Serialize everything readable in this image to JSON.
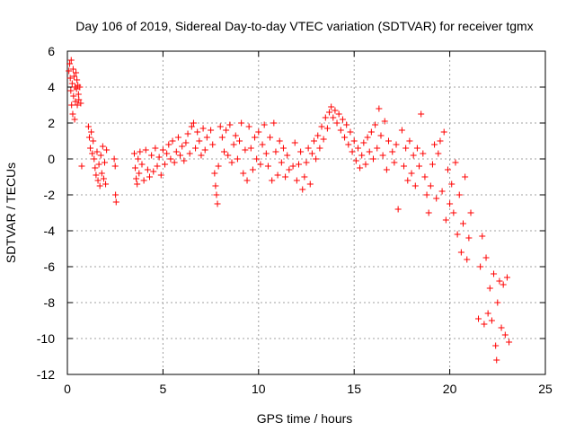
{
  "chart_data": {
    "type": "scatter",
    "title": "Day 106 of 2019, Sidereal Day-to-day VTEC variation (SDTVAR) for receiver tgmx",
    "xlabel": "GPS time / hours",
    "ylabel": "SDTVAR / TECUs",
    "xlim": [
      0,
      25
    ],
    "ylim": [
      -12,
      6
    ],
    "x_ticks": [
      0,
      5,
      10,
      15,
      20,
      25
    ],
    "y_ticks": [
      -12,
      -10,
      -8,
      -6,
      -4,
      -2,
      0,
      2,
      4,
      6
    ],
    "x_tick_labels": [
      "0",
      "5",
      "10",
      "15",
      "20",
      "25"
    ],
    "y_tick_labels": [
      "-12",
      "-10",
      "-8",
      "-6",
      "-4",
      "-2",
      "0",
      "2",
      "4",
      "6"
    ],
    "grid": true,
    "marker": "+",
    "series": [
      {
        "name": "SDTVAR",
        "color": "#ff0000",
        "points": [
          [
            0.08,
            4.9
          ],
          [
            0.12,
            5.3
          ],
          [
            0.15,
            4.5
          ],
          [
            0.18,
            3.8
          ],
          [
            0.2,
            5.5
          ],
          [
            0.22,
            3.0
          ],
          [
            0.25,
            4.2
          ],
          [
            0.28,
            2.5
          ],
          [
            0.3,
            5.0
          ],
          [
            0.32,
            3.5
          ],
          [
            0.35,
            4.6
          ],
          [
            0.38,
            2.2
          ],
          [
            0.4,
            4.0
          ],
          [
            0.42,
            3.2
          ],
          [
            0.45,
            4.8
          ],
          [
            0.48,
            3.9
          ],
          [
            0.5,
            4.4
          ],
          [
            0.52,
            3.0
          ],
          [
            0.55,
            4.1
          ],
          [
            0.58,
            3.6
          ],
          [
            0.6,
            3.3
          ],
          [
            0.65,
            4.0
          ],
          [
            0.7,
            3.1
          ],
          [
            0.75,
            -0.4
          ],
          [
            1.1,
            1.8
          ],
          [
            1.15,
            1.2
          ],
          [
            1.2,
            0.6
          ],
          [
            1.25,
            1.5
          ],
          [
            1.3,
            0.3
          ],
          [
            1.35,
            1.0
          ],
          [
            1.4,
            0.0
          ],
          [
            1.45,
            -0.5
          ],
          [
            1.5,
            -0.9
          ],
          [
            1.55,
            0.4
          ],
          [
            1.6,
            -1.2
          ],
          [
            1.65,
            -0.3
          ],
          [
            1.7,
            -1.5
          ],
          [
            1.75,
            0.2
          ],
          [
            1.8,
            -0.8
          ],
          [
            1.85,
            0.7
          ],
          [
            1.9,
            -1.1
          ],
          [
            1.95,
            -0.2
          ],
          [
            2.0,
            -1.4
          ],
          [
            2.05,
            0.5
          ],
          [
            2.45,
            0.0
          ],
          [
            2.5,
            -0.4
          ],
          [
            2.52,
            -2.0
          ],
          [
            2.55,
            -2.4
          ],
          [
            3.5,
            0.3
          ],
          [
            3.55,
            -0.5
          ],
          [
            3.6,
            -1.1
          ],
          [
            3.65,
            -1.4
          ],
          [
            3.7,
            0.0
          ],
          [
            3.75,
            -0.8
          ],
          [
            3.8,
            0.4
          ],
          [
            3.9,
            -0.3
          ],
          [
            4.0,
            -1.2
          ],
          [
            4.1,
            0.5
          ],
          [
            4.2,
            -0.6
          ],
          [
            4.3,
            -1.0
          ],
          [
            4.4,
            0.2
          ],
          [
            4.5,
            -0.7
          ],
          [
            4.6,
            0.6
          ],
          [
            4.7,
            -0.4
          ],
          [
            4.8,
            0.1
          ],
          [
            4.9,
            -0.9
          ],
          [
            5.0,
            0.5
          ],
          [
            5.1,
            -0.3
          ],
          [
            5.2,
            0.3
          ],
          [
            5.3,
            0.8
          ],
          [
            5.4,
            0.0
          ],
          [
            5.5,
            1.0
          ],
          [
            5.6,
            -0.2
          ],
          [
            5.7,
            0.4
          ],
          [
            5.8,
            1.2
          ],
          [
            5.9,
            0.2
          ],
          [
            6.0,
            0.7
          ],
          [
            6.1,
            -0.1
          ],
          [
            6.2,
            0.9
          ],
          [
            6.3,
            1.4
          ],
          [
            6.4,
            0.3
          ],
          [
            6.5,
            1.8
          ],
          [
            6.6,
            2.0
          ],
          [
            6.7,
            0.6
          ],
          [
            6.8,
            1.5
          ],
          [
            6.9,
            1.0
          ],
          [
            7.0,
            0.2
          ],
          [
            7.1,
            1.7
          ],
          [
            7.2,
            0.5
          ],
          [
            7.3,
            1.2
          ],
          [
            7.5,
            1.6
          ],
          [
            7.6,
            0.8
          ],
          [
            7.7,
            -0.8
          ],
          [
            7.75,
            -1.5
          ],
          [
            7.8,
            -2.0
          ],
          [
            7.85,
            -2.5
          ],
          [
            7.9,
            -0.4
          ],
          [
            8.0,
            1.8
          ],
          [
            8.1,
            1.2
          ],
          [
            8.2,
            0.4
          ],
          [
            8.3,
            1.6
          ],
          [
            8.4,
            0.2
          ],
          [
            8.5,
            1.9
          ],
          [
            8.6,
            -0.2
          ],
          [
            8.7,
            0.8
          ],
          [
            8.8,
            1.3
          ],
          [
            8.9,
            0.0
          ],
          [
            9.0,
            1.0
          ],
          [
            9.1,
            2.0
          ],
          [
            9.2,
            -0.8
          ],
          [
            9.3,
            0.5
          ],
          [
            9.4,
            -1.2
          ],
          [
            9.5,
            1.8
          ],
          [
            9.6,
            0.6
          ],
          [
            9.7,
            -0.6
          ],
          [
            9.8,
            1.2
          ],
          [
            9.9,
            0.0
          ],
          [
            10.0,
            1.5
          ],
          [
            10.1,
            -0.3
          ],
          [
            10.2,
            0.8
          ],
          [
            10.3,
            1.9
          ],
          [
            10.4,
            0.3
          ],
          [
            10.5,
            -0.4
          ],
          [
            10.6,
            1.2
          ],
          [
            10.7,
            -1.2
          ],
          [
            10.8,
            2.0
          ],
          [
            10.9,
            0.4
          ],
          [
            11.0,
            -0.9
          ],
          [
            11.1,
            1.0
          ],
          [
            11.2,
            -0.2
          ],
          [
            11.3,
            0.6
          ],
          [
            11.4,
            -1.0
          ],
          [
            11.5,
            0.2
          ],
          [
            11.6,
            -0.6
          ],
          [
            11.8,
            -0.4
          ],
          [
            11.9,
            0.9
          ],
          [
            12.0,
            -1.2
          ],
          [
            12.1,
            -0.3
          ],
          [
            12.2,
            0.4
          ],
          [
            12.3,
            -1.7
          ],
          [
            12.4,
            -1.0
          ],
          [
            12.5,
            -0.2
          ],
          [
            12.6,
            0.6
          ],
          [
            12.7,
            -1.4
          ],
          [
            12.8,
            0.3
          ],
          [
            12.9,
            1.0
          ],
          [
            13.0,
            0.0
          ],
          [
            13.1,
            1.3
          ],
          [
            13.2,
            0.6
          ],
          [
            13.3,
            1.8
          ],
          [
            13.4,
            1.1
          ],
          [
            13.5,
            2.3
          ],
          [
            13.6,
            1.7
          ],
          [
            13.7,
            2.6
          ],
          [
            13.8,
            2.9
          ],
          [
            13.9,
            2.3
          ],
          [
            14.0,
            2.7
          ],
          [
            14.1,
            2.0
          ],
          [
            14.2,
            2.5
          ],
          [
            14.3,
            1.6
          ],
          [
            14.4,
            2.2
          ],
          [
            14.5,
            1.2
          ],
          [
            14.6,
            1.9
          ],
          [
            14.7,
            0.8
          ],
          [
            14.8,
            1.5
          ],
          [
            14.9,
            0.4
          ],
          [
            15.0,
            1.0
          ],
          [
            15.1,
            -0.1
          ],
          [
            15.2,
            0.6
          ],
          [
            15.3,
            -0.5
          ],
          [
            15.4,
            0.2
          ],
          [
            15.5,
            0.9
          ],
          [
            15.6,
            -0.3
          ],
          [
            15.7,
            1.2
          ],
          [
            15.8,
            0.4
          ],
          [
            15.9,
            1.5
          ],
          [
            16.0,
            0.0
          ],
          [
            16.1,
            1.9
          ],
          [
            16.2,
            0.6
          ],
          [
            16.3,
            2.8
          ],
          [
            16.4,
            1.3
          ],
          [
            16.5,
            0.2
          ],
          [
            16.6,
            2.1
          ],
          [
            16.7,
            -0.6
          ],
          [
            16.8,
            1.0
          ],
          [
            17.0,
            0.4
          ],
          [
            17.1,
            -0.2
          ],
          [
            17.2,
            0.8
          ],
          [
            17.3,
            -2.8
          ],
          [
            17.5,
            1.6
          ],
          [
            17.6,
            -0.4
          ],
          [
            17.7,
            0.6
          ],
          [
            17.8,
            -1.2
          ],
          [
            17.9,
            1.0
          ],
          [
            18.0,
            -0.8
          ],
          [
            18.1,
            0.2
          ],
          [
            18.2,
            -1.5
          ],
          [
            18.3,
            0.6
          ],
          [
            18.4,
            -0.4
          ],
          [
            18.5,
            2.5
          ],
          [
            18.6,
            0.3
          ],
          [
            18.7,
            -1.0
          ],
          [
            18.8,
            -2.0
          ],
          [
            18.9,
            -3.0
          ],
          [
            19.0,
            -1.5
          ],
          [
            19.1,
            -0.3
          ],
          [
            19.2,
            0.8
          ],
          [
            19.3,
            -2.2
          ],
          [
            19.4,
            0.3
          ],
          [
            19.5,
            1.0
          ],
          [
            19.6,
            -1.8
          ],
          [
            19.7,
            1.5
          ],
          [
            19.8,
            -3.4
          ],
          [
            19.9,
            -0.6
          ],
          [
            20.0,
            -2.5
          ],
          [
            20.1,
            -1.4
          ],
          [
            20.2,
            -3.0
          ],
          [
            20.3,
            -0.2
          ],
          [
            20.4,
            -4.2
          ],
          [
            20.5,
            -2.0
          ],
          [
            20.6,
            -5.2
          ],
          [
            20.7,
            -3.6
          ],
          [
            20.8,
            -1.0
          ],
          [
            20.9,
            -5.6
          ],
          [
            21.0,
            -4.4
          ],
          [
            21.1,
            -3.0
          ],
          [
            21.5,
            -8.9
          ],
          [
            21.6,
            -6.0
          ],
          [
            21.7,
            -4.3
          ],
          [
            21.8,
            -9.2
          ],
          [
            21.9,
            -5.5
          ],
          [
            22.0,
            -8.6
          ],
          [
            22.1,
            -7.2
          ],
          [
            22.2,
            -9.0
          ],
          [
            22.3,
            -6.4
          ],
          [
            22.4,
            -10.4
          ],
          [
            22.45,
            -11.2
          ],
          [
            22.5,
            -8.0
          ],
          [
            22.6,
            -6.8
          ],
          [
            22.7,
            -9.4
          ],
          [
            22.8,
            -7.0
          ],
          [
            22.9,
            -9.8
          ],
          [
            23.0,
            -6.6
          ],
          [
            23.1,
            -10.2
          ]
        ]
      }
    ]
  }
}
